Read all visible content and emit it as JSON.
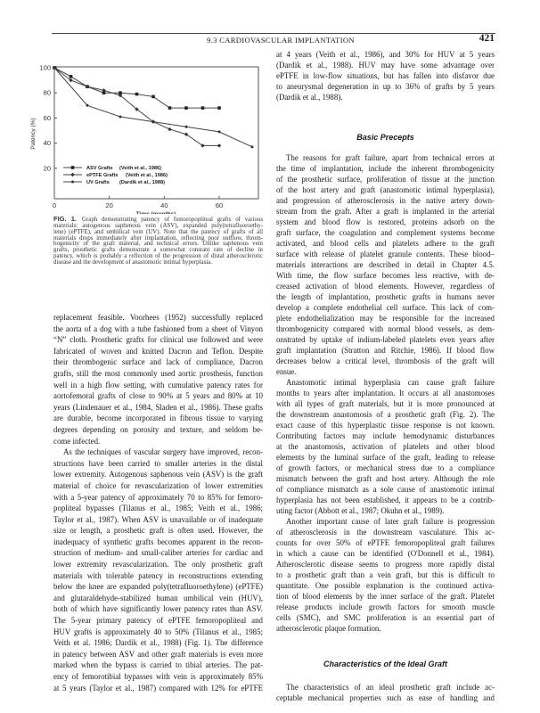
{
  "header": {
    "running_head": "9.3 CARDIOVASCULAR IMPLANTATION",
    "page_number": "421"
  },
  "chart_data": {
    "type": "line",
    "title": "",
    "xlabel": "Time (months)",
    "ylabel": "Patency (%)",
    "xlim": [
      0,
      72
    ],
    "ylim": [
      0,
      100
    ],
    "xticks": [
      0,
      20,
      40,
      60
    ],
    "yticks": [
      20,
      40,
      60,
      80,
      100
    ],
    "grid": false,
    "legend_position": "bottom-left",
    "series": [
      {
        "name": "ASV Grafts",
        "source": "(Veith et al., 1986)",
        "marker": "square",
        "x": [
          0,
          6,
          12,
          18,
          24,
          30,
          36,
          42,
          48,
          54,
          60
        ],
        "y": [
          100,
          93,
          85,
          80,
          80,
          79,
          77,
          68,
          68,
          68,
          68
        ]
      },
      {
        "name": "ePTFE Grafts",
        "source": "(Veith et al., 1986)",
        "marker": "diamond",
        "x": [
          0,
          6,
          12,
          18,
          24,
          30,
          36,
          42,
          48,
          54,
          60
        ],
        "y": [
          100,
          90,
          85,
          82,
          78,
          67,
          57,
          51,
          47,
          38,
          38
        ]
      },
      {
        "name": "UV Grafts",
        "source": "(Dardik et al., 1988)",
        "marker": "star",
        "x": [
          0,
          12,
          24,
          36,
          48,
          60,
          72
        ],
        "y": [
          100,
          70,
          61,
          57,
          53,
          49,
          37
        ]
      }
    ]
  },
  "caption": {
    "label": "FIG. 1.",
    "lines": [
      "Graph demonstrating patency of femoropopliteal grafts of various",
      "materials: autogenous saphenous vein (ASV), expanded poly(tetrafluoroethy-",
      "lene) (ePTFE), and umbilical vein (UV). Note that the patency of grafts of all",
      "materials drops immediately after implantation, reflecting poor outflow, throm-",
      "bogenicity of the graft material, and technical errors. Unlike saphenous vein",
      "grafts, prosthetic grafts demonstrate a somewhat constant rate of decline in",
      "patency, which is probably a reflection of the progression of distal atherosclerotic",
      "disease and the development of anastomotic intimal hyperplasia."
    ]
  },
  "left_column": [
    {
      "indent": false,
      "lines": [
        "replacement feasible. Voorhees (1952) successfully replaced",
        "the aorta of a dog with a tube fashioned from a sheet of Vinyon",
        "“N” cloth. Prosthetic grafts for clinical use followed and were",
        "fabricated of woven and knitted Dacron and Teflon. Despite",
        "their thrombogenic surface and lack of compliance, Dacron",
        "grafts, still the most commonly used aortic prosthesis, function",
        "well in a high flow setting, with cumulative patency rates for",
        "aortofemoral grafts of close to 90% at 5 years and 80% at 10",
        "years (Lindenauer et al., 1984, Sladen et al., 1986). These grafts",
        "are durable, become incorporated in fibrous tissue to varying",
        "degrees depending on porosity and texture, and seldom be-",
        "come infected."
      ]
    },
    {
      "indent": true,
      "lines": [
        "As the techniques of vascular surgery have improved, recon-",
        "structions have been carried to smaller arteries in the distal",
        "lower extremity. Autogenous saphenous vein (ASV) is the graft",
        "material of choice for revascularization of lower extremities",
        "with a 5-year patency of approximately 70 to 85% for femoro-",
        "popliteal bypasses (Tilanus et al., 1985; Veith et al., 1986;",
        "Taylor et al., 1987). When ASV is unavailable or of inadequate",
        "size or length, a prosthetic graft is often used. However, the",
        "inadequacy of synthetic grafts becomes apparent in the recon-",
        "struction of medium- and small-caliber arteries for cardiac and",
        "lower extremity revascularization. The only prosthetic graft",
        "materials with tolerable patency in reconstructions extending",
        "below the knee are expanded poly(tetrafluoroethylene) (ePTFE)",
        "and glutaraldehyde-stabilized human umbilical vein (HUV),",
        "both of which have significantly lower patency rates than ASV.",
        "The 5-year primary patency of ePTFE femoropopliteal and",
        "HUV grafts is approximately 40 to 50% (Tilanus et al., 1985;",
        "Veith et al. 1986; Dardik et al., 1988) (Fig. 1). The difference",
        "in patency between ASV and other graft materials is even more",
        "marked when the bypass is carried to tibial arteries. The pat-",
        "ency of femorotibial bypasses with vein is approximately 85%",
        "at 5 years (Taylor et al., 1987) compared with 12% for ePTFE"
      ],
      "open_end": true
    }
  ],
  "right_column": {
    "intro": [
      {
        "indent": false,
        "lines": [
          "at 4 years (Veith et al., 1986), and 30% for HUV at 5 years",
          "(Dardik et al., 1988). HUV may have some advantage over",
          "ePTFE in low-flow situations, but has fallen into disfavor due",
          "to aneurysmal degeneration in up to 36% of grafts by 5 years",
          "(Dardik et al., 1988)."
        ]
      }
    ],
    "heading_1": "Basic Precepts",
    "section_1": [
      {
        "indent": true,
        "lines": [
          "The reasons for graft failure, apart from technical errors at",
          "the time of implantation, include the inherent thrombogenicity",
          "of the prosthetic surface, proliferation of tissue at the junction",
          "of the host artery and graft (anastomotic intimal hyperplasia),",
          "and progression of atherosclerosis in the native artery down-",
          "stream from the graft. After a graft is implanted in the arterial",
          "system and blood flow is restored, proteins adsorb on the",
          "graft surface, the coagulation and complement systems become",
          "activated, and blood cells and platelets adhere to the graft",
          "surface with release of platelet granule contents. These blood–",
          "materials interactions are described in detail in Chapter 4.5.",
          "With time, the flow surface becomes less reactive, with de-",
          "creased activation of blood elements. However, regardless of",
          "the length of implantation, prosthetic grafts in humans never",
          "develop a complete endothelial cell surface. This lack of com-",
          "plete endothelialization may be responsible for the increased",
          "thrombogenicity compared with normal blood vessels, as dem-",
          "onstrated by uptake of indium-labeled platelets even years after",
          "graft implantation (Stratton and Ritchie, 1986). If blood flow",
          "decreases below a critical level, thrombosis of the graft will",
          "ensue."
        ]
      },
      {
        "indent": true,
        "lines": [
          "Anastomotic intimal hyperplasia can cause graft failure",
          "months to years after implantation. It occurs at all anastomoses",
          "with all types of graft materials, but it is more pronounced at",
          "the downstream anastomosis of a prosthetic graft (Fig. 2). The",
          "exact cause of this hyperplastic tissue response is not known.",
          "Contributing factors may include hemodynamic disturbances",
          "at the anastomosis, activation of platelets and other blood",
          "elements by the luminal surface of the graft, leading to release",
          "of growth factors, or mechanical stress due to a compliance",
          "mismatch between the graft and host artery. Although the role",
          "of compliance mismatch as a sole cause of anastomotic intimal",
          "hyperplasia has not been established, it appears to be a contrib-",
          "uting factor (Abbott et al., 1987; Okuhn et al., 1989)."
        ]
      },
      {
        "indent": true,
        "lines": [
          "Another important cause of later graft failure is progression",
          "of atherosclerosis in the downstream vasculature. This ac-",
          "counts for over 50% of ePTFE femoropopliteal graft failures",
          "in which a cause can be identified (O'Donnell et al., 1984).",
          "Atherosclerotic disease seems to progress more rapidly distal",
          "to a prosthetic graft than a vein graft, but this is difficult to",
          "quantitate. One possible explanation is the continued activa-",
          "tion of blood elements by the inner surface of the graft. Platelet",
          "release products include growth factors for smooth muscle",
          "cells (SMC), and SMC proliferation is an essential part of",
          "atherosclerotic plaque formation."
        ]
      }
    ],
    "heading_2": "Characteristics of the Ideal Graft",
    "section_2": [
      {
        "indent": true,
        "lines": [
          "The characteristics of an ideal prosthetic graft include ac-",
          "ceptable mechanical properties such as ease of handling and"
        ],
        "open_end": true
      }
    ]
  }
}
